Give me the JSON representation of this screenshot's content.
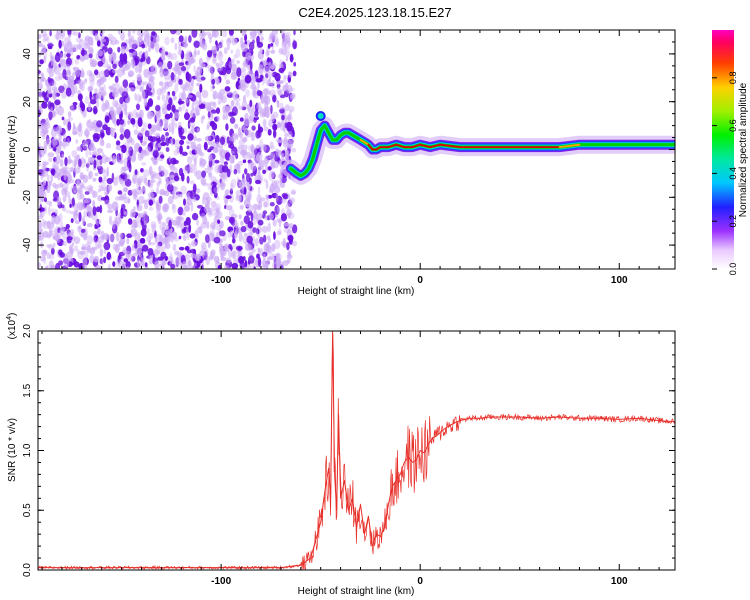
{
  "figure": {
    "title": "C2E4.2025.123.18.15.E27"
  },
  "colors": {
    "snr_line": "#e8302a",
    "scatter_core": "#6a0fe0",
    "scatter_light": "#cba8f5",
    "ridge_hot": "#e00000",
    "ridge_warm": "#00d000",
    "ridge_cool": "#0050ff"
  },
  "chart_data": [
    {
      "type": "heatmap",
      "xlabel": "Height of straight line (km)",
      "ylabel": "Frequency (Hz)",
      "xlim": [
        -192,
        128
      ],
      "ylim": [
        -50,
        50
      ],
      "xticks": [
        -100,
        0,
        100
      ],
      "xtick_labels": [
        "-100",
        "0",
        "100"
      ],
      "yticks": [
        -40,
        -20,
        0,
        20,
        40
      ],
      "ytick_labels": [
        "-40",
        "-20",
        "0",
        "20",
        "40"
      ],
      "noise_region": {
        "x_from": -192,
        "x_to": -63,
        "y_from": -50,
        "y_to": 50
      },
      "ridge": {
        "x": [
          -65,
          -62,
          -60,
          -58,
          -56,
          -54,
          -52,
          -50,
          -48,
          -46,
          -44,
          -42,
          -40,
          -38,
          -36,
          -34,
          -32,
          -30,
          -28,
          -26,
          -24,
          -22,
          -20,
          -16,
          -12,
          -8,
          -4,
          0,
          5,
          10,
          20,
          30,
          40,
          50,
          60,
          70,
          80,
          90,
          100,
          110,
          120,
          128
        ],
        "y": [
          -8,
          -10,
          -11,
          -10,
          -8,
          -4,
          2,
          8,
          10,
          7,
          4,
          4,
          6,
          7,
          7,
          6,
          5,
          4,
          3,
          2,
          0,
          0,
          1,
          1,
          2,
          1,
          1,
          2,
          1,
          2,
          1,
          1,
          1,
          1,
          1,
          1,
          2,
          2,
          2,
          2,
          2,
          2
        ],
        "amplitude": [
          0.35,
          0.4,
          0.45,
          0.5,
          0.5,
          0.45,
          0.5,
          0.55,
          0.6,
          0.6,
          0.6,
          0.65,
          0.7,
          0.7,
          0.7,
          0.7,
          0.75,
          0.8,
          0.85,
          0.9,
          0.95,
          0.95,
          0.95,
          0.95,
          0.95,
          0.95,
          0.95,
          0.95,
          0.95,
          0.95,
          1.0,
          1.0,
          1.0,
          1.0,
          1.0,
          0.95,
          0.7,
          0.55,
          0.6,
          0.6,
          0.55,
          0.5
        ]
      },
      "colorbar": {
        "label": "Normalized spectral amplitude",
        "range": [
          0.0,
          1.0
        ],
        "ticks": [
          0.0,
          0.2,
          0.4,
          0.6,
          0.8
        ],
        "tick_labels": [
          "0.0",
          "0.2",
          "0.4",
          "0.6",
          "0.8"
        ],
        "colormap": "rainbow"
      }
    },
    {
      "type": "line",
      "xlabel": "Height of straight line (km)",
      "ylabel": "SNR (10 * v/v)",
      "scale_label": "(x10",
      "scale_exp": "4",
      "xlim": [
        -192,
        128
      ],
      "ylim": [
        0.0,
        2.0
      ],
      "xticks": [
        -100,
        0,
        100
      ],
      "xtick_labels": [
        "-100",
        "0",
        "100"
      ],
      "yticks": [
        0.0,
        0.5,
        1.0,
        1.5,
        2.0
      ],
      "ytick_labels": [
        "0.0",
        "0.5",
        "1.0",
        "1.5",
        "2.0"
      ],
      "series": [
        {
          "x": [
            -192,
            -150,
            -100,
            -70,
            -60,
            -55,
            -50,
            -48,
            -46,
            -45,
            -44,
            -43,
            -42,
            -41,
            -40,
            -38,
            -36,
            -34,
            -32,
            -30,
            -28,
            -26,
            -24,
            -22,
            -20,
            -18,
            -16,
            -14,
            -12,
            -10,
            -8,
            -6,
            -4,
            -2,
            0,
            2,
            4,
            6,
            8,
            10,
            12,
            14,
            16,
            20,
            25,
            30,
            35,
            40,
            50,
            60,
            70,
            80,
            90,
            100,
            110,
            120,
            128
          ],
          "y": [
            0.02,
            0.02,
            0.02,
            0.02,
            0.04,
            0.1,
            0.4,
            0.65,
            0.85,
            0.6,
            1.99,
            0.8,
            0.5,
            1.3,
            0.6,
            0.75,
            0.5,
            0.6,
            0.35,
            0.55,
            0.3,
            0.45,
            0.2,
            0.3,
            0.28,
            0.35,
            0.55,
            0.7,
            0.75,
            0.8,
            0.9,
            0.95,
            0.9,
            0.92,
            1.0,
            0.98,
            1.05,
            1.1,
            1.12,
            1.15,
            1.18,
            1.2,
            1.22,
            1.25,
            1.27,
            1.27,
            1.28,
            1.28,
            1.28,
            1.27,
            1.28,
            1.27,
            1.27,
            1.26,
            1.27,
            1.25,
            1.24
          ]
        }
      ]
    }
  ]
}
